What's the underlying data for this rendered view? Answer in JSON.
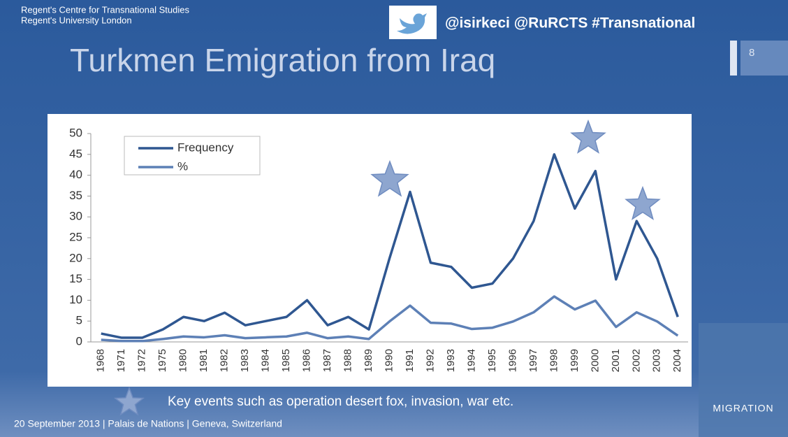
{
  "slide": {
    "org_lines": [
      "Regent's Centre for Transnational Studies",
      "Regent's University London"
    ],
    "twitter": "@isirkeci @RuRCTS #Transnational",
    "title": "Turkmen Emigration from Iraq",
    "page_number": "8",
    "key_note": "Key events such as operation desert fox, invasion, war etc.",
    "footer": "20 September 2013 | Palais de Nations | Geneva, Switzerland",
    "book_title": "MIGRATION"
  },
  "chart_data": {
    "type": "line",
    "categories": [
      "1968",
      "1971",
      "1972",
      "1975",
      "1980",
      "1981",
      "1982",
      "1983",
      "1984",
      "1985",
      "1986",
      "1987",
      "1988",
      "1989",
      "1990",
      "1991",
      "1992",
      "1993",
      "1994",
      "1995",
      "1996",
      "1997",
      "1998",
      "1999",
      "2000",
      "2001",
      "2002",
      "2003",
      "2004"
    ],
    "series": [
      {
        "name": "Frequency",
        "color": "#2f5791",
        "values": [
          2,
          1,
          1,
          3,
          6,
          5,
          7,
          4,
          5,
          6,
          10,
          4,
          6,
          3,
          20,
          36,
          19,
          18,
          13,
          14,
          20,
          29,
          45,
          32,
          41,
          15,
          29,
          20,
          6
        ]
      },
      {
        "name": "%",
        "color": "#5d80b6",
        "values": [
          0.5,
          0.2,
          0.2,
          0.7,
          1.3,
          1.1,
          1.6,
          0.9,
          1.1,
          1.3,
          2.2,
          0.9,
          1.3,
          0.7,
          4.9,
          8.7,
          4.6,
          4.4,
          3.1,
          3.4,
          4.9,
          7.1,
          10.9,
          7.8,
          9.9,
          3.6,
          7.1,
          4.9,
          1.5
        ]
      }
    ],
    "ylim": [
      0,
      50
    ],
    "yticks": [
      0,
      5,
      10,
      15,
      20,
      25,
      30,
      35,
      40,
      45,
      50
    ],
    "legend": "upper left",
    "grid": false
  }
}
